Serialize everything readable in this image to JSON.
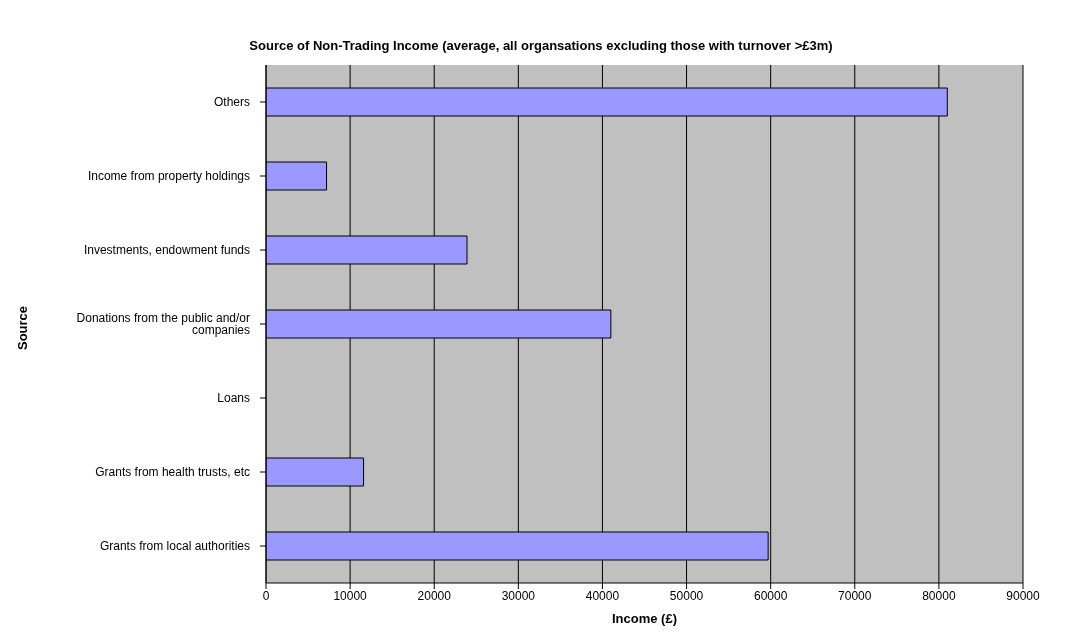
{
  "chart_data": {
    "type": "bar",
    "orientation": "horizontal",
    "title": "Source of Non-Trading Income (average, all organsations excluding those with turnover >£3m)",
    "xlabel": "Income (£)",
    "ylabel": "Source",
    "categories": [
      "Others",
      "Income from property holdings",
      "Investments, endowment funds",
      "Donations from the public and/or companies",
      "Loans",
      "Grants from health trusts, etc",
      "Grants from local authorities"
    ],
    "values": [
      81000,
      7200,
      23900,
      41000,
      0,
      11600,
      59700
    ],
    "color": "#9999ff",
    "xlim": [
      0,
      90000
    ],
    "xticks": [
      0,
      10000,
      20000,
      30000,
      40000,
      50000,
      60000,
      70000,
      80000,
      90000
    ],
    "grid": "x",
    "legend": false
  }
}
